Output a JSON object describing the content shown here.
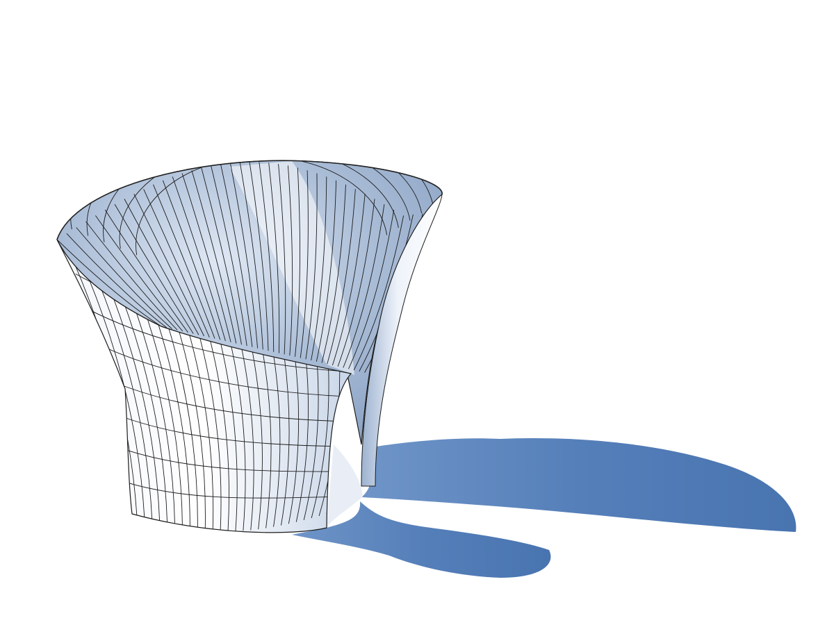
{
  "scene": {
    "background_color": "#ffffff",
    "shadow_color": "#4b78b2",
    "surface_light_color": "#ffffff",
    "surface_shade_color": "#8fa6c7",
    "grid_line_color": "#1b1b1b",
    "objects": [
      {
        "type": "architectural-shell",
        "description_icon": "hyperbolic-pavilion-icon"
      },
      {
        "type": "cast-shadow",
        "description_icon": "shadow-shape-icon"
      }
    ]
  }
}
